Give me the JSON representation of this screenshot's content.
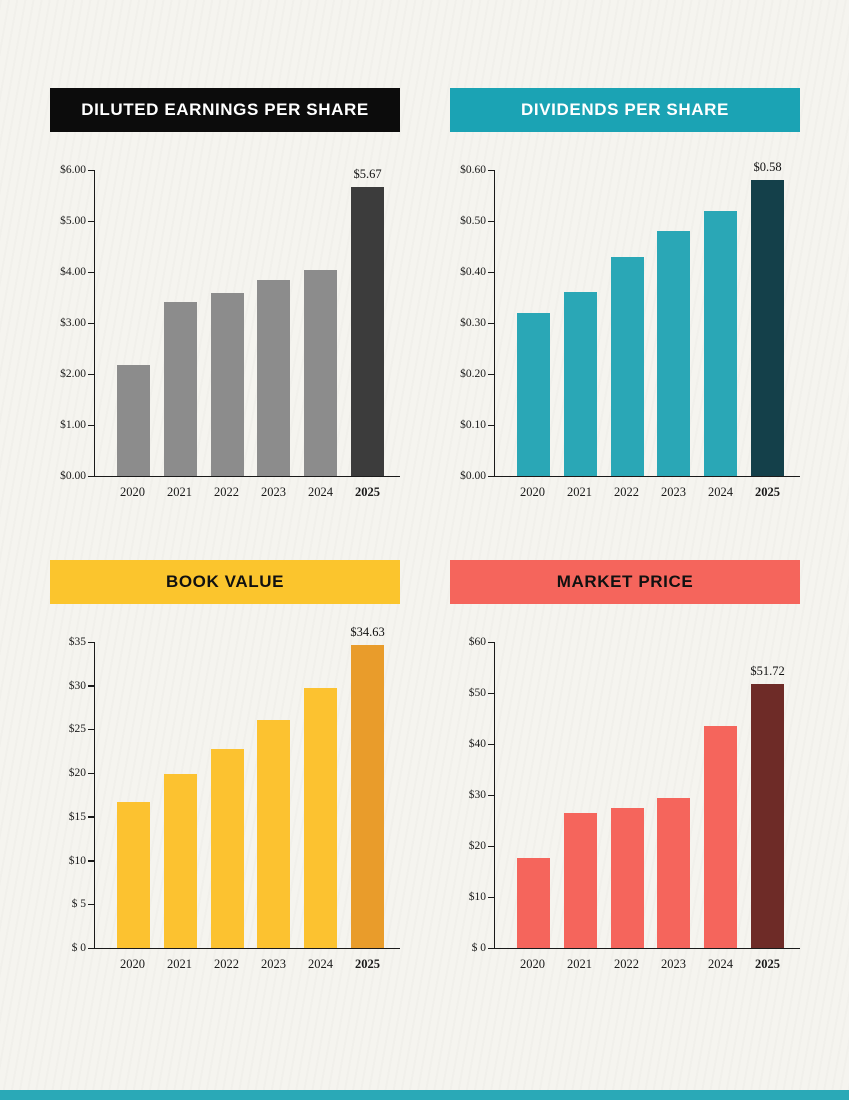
{
  "page": {
    "background": "#f5f4ef",
    "footer_bar_color": "#2aa9b7"
  },
  "chart_data": [
    {
      "type": "bar",
      "title": "DILUTED EARNINGS PER SHARE",
      "header_bg": "#0c0c0c",
      "header_text_color": "#ffffff",
      "bar_color": "#8c8c8c",
      "highlight_bar_color": "#3c3c3c",
      "highlight_index": 5,
      "categories": [
        "2020",
        "2021",
        "2022",
        "2023",
        "2024",
        "2025"
      ],
      "values": [
        2.18,
        3.42,
        3.58,
        3.84,
        4.04,
        5.67
      ],
      "ylim": [
        0,
        6
      ],
      "ytick_labels": [
        "$0.00",
        "$1.00",
        "$2.00",
        "$3.00",
        "$4.00",
        "$5.00",
        "$6.00"
      ],
      "annotations": [
        {
          "category_index": 5,
          "label": "$5.67"
        }
      ],
      "xlabel": "",
      "ylabel": "",
      "grid": false,
      "legend": false
    },
    {
      "type": "bar",
      "title": "DIVIDENDS PER SHARE",
      "header_bg": "#1ba3b4",
      "header_text_color": "#ffffff",
      "bar_color": "#2aa7b6",
      "highlight_bar_color": "#14404a",
      "highlight_index": 5,
      "categories": [
        "2020",
        "2021",
        "2022",
        "2023",
        "2024",
        "2025"
      ],
      "values": [
        0.32,
        0.36,
        0.43,
        0.48,
        0.52,
        0.58
      ],
      "ylim": [
        0,
        0.6
      ],
      "ytick_labels": [
        "$0.00",
        "$0.10",
        "$0.20",
        "$0.30",
        "$0.40",
        "$0.50",
        "$0.60"
      ],
      "annotations": [
        {
          "category_index": 5,
          "label": "$0.58"
        }
      ],
      "xlabel": "",
      "ylabel": "",
      "grid": false,
      "legend": false
    },
    {
      "type": "bar",
      "title": "BOOK VALUE",
      "header_bg": "#fbc52d",
      "header_text_color": "#111111",
      "bar_color": "#fcc230",
      "highlight_bar_color": "#e99c2b",
      "highlight_index": 5,
      "categories": [
        "2020",
        "2021",
        "2022",
        "2023",
        "2024",
        "2025"
      ],
      "values": [
        16.7,
        19.9,
        22.8,
        26.1,
        29.7,
        34.63
      ],
      "ylim": [
        0,
        35
      ],
      "ytick_labels": [
        "$ 0",
        "$ 5",
        "$10",
        "$15",
        "$20",
        "$25",
        "$30",
        "$35"
      ],
      "annotations": [
        {
          "category_index": 5,
          "label": "$34.63"
        }
      ],
      "xlabel": "",
      "ylabel": "",
      "grid": false,
      "legend": false
    },
    {
      "type": "bar",
      "title": "MARKET PRICE",
      "header_bg": "#f5655c",
      "header_text_color": "#111111",
      "bar_color": "#f5655c",
      "highlight_bar_color": "#6e2b27",
      "highlight_index": 5,
      "categories": [
        "2020",
        "2021",
        "2022",
        "2023",
        "2024",
        "2025"
      ],
      "values": [
        17.6,
        26.4,
        27.5,
        29.5,
        43.5,
        51.72
      ],
      "ylim": [
        0,
        60
      ],
      "ytick_labels": [
        "$ 0",
        "$10",
        "$20",
        "$30",
        "$40",
        "$50",
        "$60"
      ],
      "annotations": [
        {
          "category_index": 5,
          "label": "$51.72"
        }
      ],
      "xlabel": "",
      "ylabel": "",
      "grid": false,
      "legend": false
    }
  ]
}
